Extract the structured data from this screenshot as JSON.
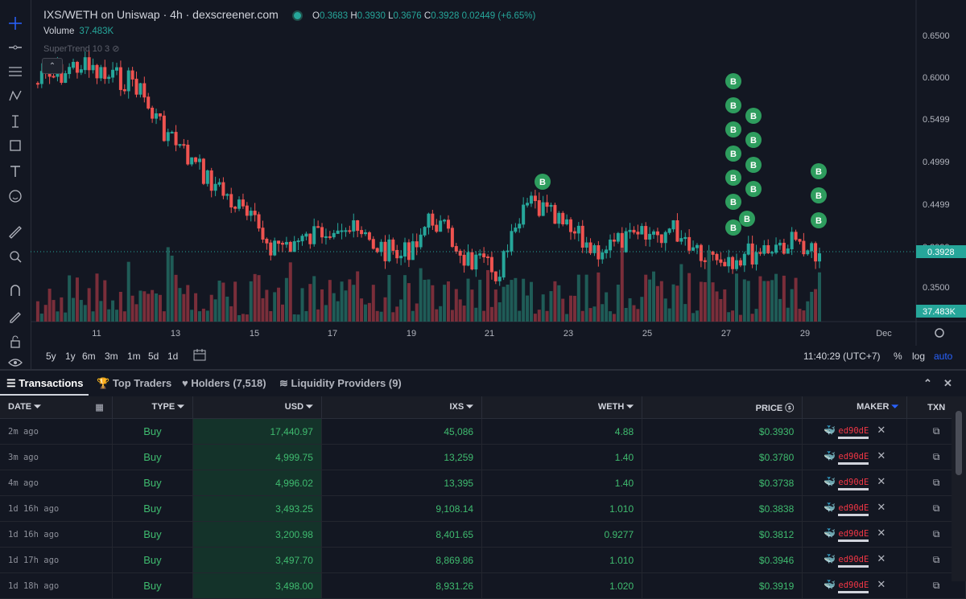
{
  "chart": {
    "title": "IXS/WETH on Uniswap · 4h · dexscreener.com",
    "ohlc": {
      "o_label": "O",
      "o": "0.3683",
      "h_label": "H",
      "h": "0.3930",
      "l_label": "L",
      "l": "0.3676",
      "c_label": "C",
      "c": "0.3928",
      "change": "0.02449 (+6.65%)"
    },
    "volume_label": "Volume",
    "volume_value": "37.483K",
    "supertrend_label": "SuperTrend 10 3",
    "current_price_badge": "0.3928",
    "current_volume_badge": "37.483K",
    "y_ticks": [
      "0.6500",
      "0.6000",
      "0.5499",
      "0.4999",
      "0.4499",
      "0.3999",
      "0.3500"
    ],
    "x_ticks": [
      "11",
      "13",
      "15",
      "17",
      "19",
      "21",
      "23",
      "25",
      "27",
      "29",
      "Dec"
    ],
    "timeframes": [
      "5y",
      "1y",
      "6m",
      "3m",
      "1m",
      "5d",
      "1d"
    ],
    "clock": "11:40:29 (UTC+7)",
    "scale_pct": "%",
    "scale_log": "log",
    "scale_auto": "auto",
    "buy_marker_label": "B",
    "colors": {
      "up": "#26a69a",
      "down": "#ef5350",
      "background": "#131722",
      "buy_marker": "#2e9d5e",
      "link": "#2962ff"
    }
  },
  "tabs": {
    "transactions": "Transactions",
    "top_traders": "Top Traders",
    "holders": "Holders (7,518)",
    "liquidity": "Liquidity Providers (9)"
  },
  "table": {
    "headers": {
      "date": "DATE",
      "type": "TYPE",
      "usd": "USD",
      "ixs": "IXS",
      "weth": "WETH",
      "price": "PRICE",
      "maker": "MAKER",
      "txn": "TXN"
    },
    "rows": [
      {
        "date": "2m ago",
        "type": "Buy",
        "usd": "17,440.97",
        "ixs": "45,086",
        "weth": "4.88",
        "price": "$0.3930",
        "maker": "ed90dE"
      },
      {
        "date": "3m ago",
        "type": "Buy",
        "usd": "4,999.75",
        "ixs": "13,259",
        "weth": "1.40",
        "price": "$0.3780",
        "maker": "ed90dE"
      },
      {
        "date": "4m ago",
        "type": "Buy",
        "usd": "4,996.02",
        "ixs": "13,395",
        "weth": "1.40",
        "price": "$0.3738",
        "maker": "ed90dE"
      },
      {
        "date": "1d 16h ago",
        "type": "Buy",
        "usd": "3,493.25",
        "ixs": "9,108.14",
        "weth": "1.010",
        "price": "$0.3838",
        "maker": "ed90dE"
      },
      {
        "date": "1d 16h ago",
        "type": "Buy",
        "usd": "3,200.98",
        "ixs": "8,401.65",
        "weth": "0.9277",
        "price": "$0.3812",
        "maker": "ed90dE"
      },
      {
        "date": "1d 17h ago",
        "type": "Buy",
        "usd": "3,497.70",
        "ixs": "8,869.86",
        "weth": "1.010",
        "price": "$0.3946",
        "maker": "ed90dE"
      },
      {
        "date": "1d 18h ago",
        "type": "Buy",
        "usd": "3,498.00",
        "ixs": "8,931.26",
        "weth": "1.020",
        "price": "$0.3919",
        "maker": "ed90dE"
      }
    ]
  }
}
